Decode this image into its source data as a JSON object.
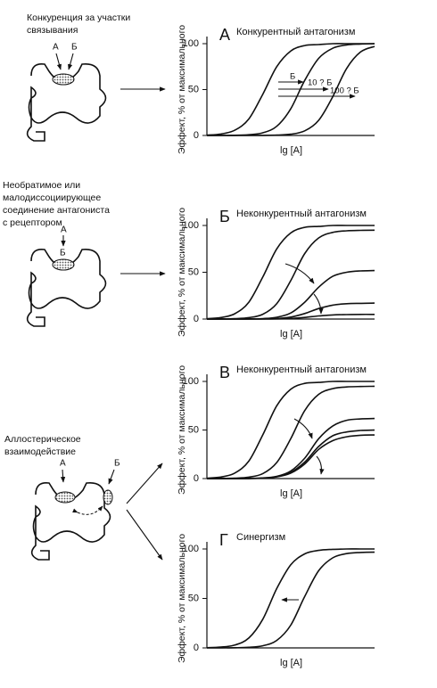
{
  "diagrams": [
    {
      "caption": [
        "Конкуренция за участки",
        "связывания"
      ],
      "labels": [
        "А",
        "Б"
      ]
    },
    {
      "caption": [
        "Необратимое или",
        "малодиссоциирующее",
        "соединение антагониста",
        "с рецептором"
      ],
      "labels": [
        "А",
        "Б"
      ]
    },
    {
      "caption": [
        "Аллостерическое",
        "взаимодействие"
      ],
      "labels": [
        "А",
        "Б"
      ]
    }
  ],
  "chart_data": [
    {
      "type": "line",
      "label": "А",
      "title": "Конкурентный антагонизм",
      "xlabel": "lg [A]",
      "ylabel": "Эффект, % от максимального",
      "annotations": [
        "Б",
        "10 ? Б",
        "100 ? Б"
      ],
      "x": [
        0,
        1,
        2,
        3,
        4,
        5,
        6,
        7,
        8,
        9,
        10,
        11,
        12
      ],
      "xlim": [
        0,
        12
      ],
      "ylim": [
        0,
        100
      ],
      "yticks": [
        0,
        50,
        100
      ],
      "series": [
        {
          "color": "#111",
          "values": [
            0.4,
            1.6,
            5.7,
            18,
            45,
            75,
            92,
            98,
            99,
            100,
            100,
            100,
            100
          ]
        },
        {
          "color": "#111",
          "values": [
            0,
            0.06,
            0.2,
            0.8,
            2.9,
            10,
            29,
            60,
            84,
            95,
            98.6,
            99.6,
            100
          ]
        },
        {
          "color": "#111",
          "values": [
            0,
            0,
            0,
            0.05,
            0.1,
            0.4,
            1.4,
            5,
            16.5,
            42,
            73,
            91,
            97
          ]
        }
      ]
    },
    {
      "type": "line",
      "label": "Б",
      "title": "Неконкурентный антагонизм",
      "xlabel": "lg [A]",
      "ylabel": "Эффект, % от максимального",
      "x": [
        0,
        1,
        2,
        3,
        4,
        5,
        6,
        7,
        8,
        9,
        10,
        11,
        12
      ],
      "xlim": [
        0,
        12
      ],
      "ylim": [
        0,
        100
      ],
      "yticks": [
        0,
        50,
        100
      ],
      "series": [
        {
          "color": "#111",
          "values": [
            0.4,
            1.6,
            5.7,
            18,
            45,
            75,
            92,
            98,
            99,
            100,
            100,
            100,
            100
          ]
        },
        {
          "color": "#111",
          "values": [
            0,
            0.1,
            0.4,
            1.5,
            5.1,
            16.5,
            41,
            70,
            86.7,
            92.6,
            94.3,
            94.8,
            95
          ]
        },
        {
          "color": "#111",
          "values": [
            0,
            0,
            0,
            0.15,
            0.5,
            1.9,
            6.5,
            18,
            34,
            45.6,
            50,
            51.4,
            51.8
          ]
        },
        {
          "color": "#111",
          "values": [
            0,
            0,
            0,
            0.05,
            0.2,
            0.6,
            2.1,
            5.9,
            11.2,
            14.9,
            16.4,
            16.8,
            17
          ]
        },
        {
          "color": "#111",
          "values": [
            0,
            0,
            0,
            0,
            0.05,
            0.2,
            0.6,
            1.7,
            3.3,
            4.4,
            4.8,
            5,
            5
          ]
        }
      ]
    },
    {
      "type": "line",
      "label": "В",
      "title": "Неконкурентный антагонизм",
      "xlabel": "lg [A]",
      "ylabel": "Эффект, % от максимального",
      "x": [
        0,
        1,
        2,
        3,
        4,
        5,
        6,
        7,
        8,
        9,
        10,
        11,
        12
      ],
      "xlim": [
        0,
        12
      ],
      "ylim": [
        0,
        100
      ],
      "yticks": [
        0,
        50,
        100
      ],
      "series": [
        {
          "color": "#111",
          "values": [
            0.4,
            1.6,
            5.7,
            18,
            45,
            75,
            92,
            98,
            99,
            100,
            100,
            100,
            100
          ]
        },
        {
          "color": "#111",
          "values": [
            0,
            0.1,
            0.4,
            1.5,
            5.1,
            16.5,
            41,
            70,
            86.7,
            92.6,
            94.3,
            94.8,
            95
          ]
        },
        {
          "color": "#111",
          "values": [
            0,
            0,
            0,
            0.2,
            0.6,
            2.3,
            7.8,
            21,
            41,
            54,
            60,
            61.4,
            61.8
          ]
        },
        {
          "color": "#111",
          "values": [
            0,
            0,
            0,
            0.1,
            0.5,
            1.9,
            6.3,
            17,
            33,
            44,
            48,
            49.5,
            49.9
          ]
        },
        {
          "color": "#111",
          "values": [
            0,
            0,
            0,
            0.1,
            0.5,
            1.7,
            5.6,
            15,
            30,
            39,
            43,
            44.6,
            44.9
          ]
        }
      ]
    },
    {
      "type": "line",
      "label": "Г",
      "title": "Синергизм",
      "xlabel": "lg [A]",
      "ylabel": "Эффект, % от максимального",
      "x": [
        0,
        1,
        2,
        3,
        4,
        5,
        6,
        7,
        8,
        9,
        10,
        11,
        12
      ],
      "xlim": [
        0,
        12
      ],
      "ylim": [
        0,
        100
      ],
      "yticks": [
        0,
        50,
        100
      ],
      "series": [
        {
          "color": "#111",
          "values": [
            0.2,
            0.8,
            2.9,
            10,
            29,
            60,
            84,
            95,
            98.6,
            99.6,
            100,
            100,
            100
          ]
        },
        {
          "color": "#111",
          "values": [
            0,
            0.05,
            0.17,
            0.6,
            2.2,
            7.6,
            23,
            52,
            78,
            91,
            95.3,
            96.5,
            96.8
          ]
        }
      ]
    }
  ]
}
